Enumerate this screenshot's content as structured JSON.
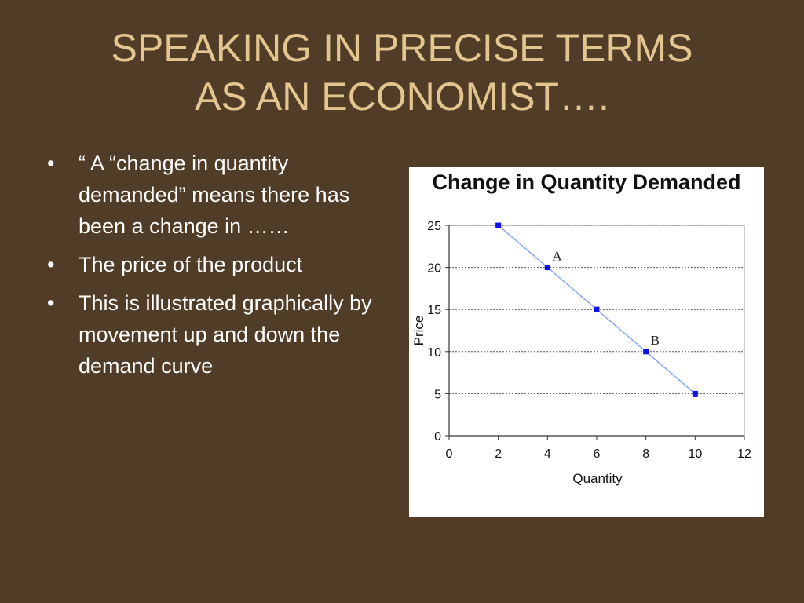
{
  "slide": {
    "title_lines": [
      "SPEAKING IN PRECISE TERMS",
      "AS AN ECONOMIST…."
    ],
    "bullets": [
      "“ A “change in quantity demanded” means there has been a change in ……",
      "The price of the product",
      "This is illustrated graphically by movement up and down the demand curve"
    ]
  },
  "colors": {
    "background": "#513d27",
    "title": "#e3c58f",
    "series_line": "#8aa8f0",
    "series_marker": "#1010ee",
    "grid": "#555555"
  },
  "chart_data": {
    "type": "line",
    "title": "Change in Quantity Demanded",
    "xlabel": "Quantity",
    "ylabel": "Price",
    "xlim": [
      0,
      12
    ],
    "ylim": [
      0,
      25
    ],
    "xticks": [
      0,
      2,
      4,
      6,
      8,
      10,
      12
    ],
    "yticks": [
      0,
      5,
      10,
      15,
      20,
      25
    ],
    "grid": "horizontal dashed",
    "legend": "none",
    "series": [
      {
        "x": [
          2,
          4,
          6,
          8,
          10
        ],
        "y": [
          25,
          20,
          15,
          10,
          5
        ]
      }
    ],
    "annotations": [
      {
        "text": "A",
        "x": 4,
        "y": 20
      },
      {
        "text": "B",
        "x": 8,
        "y": 10
      }
    ]
  }
}
